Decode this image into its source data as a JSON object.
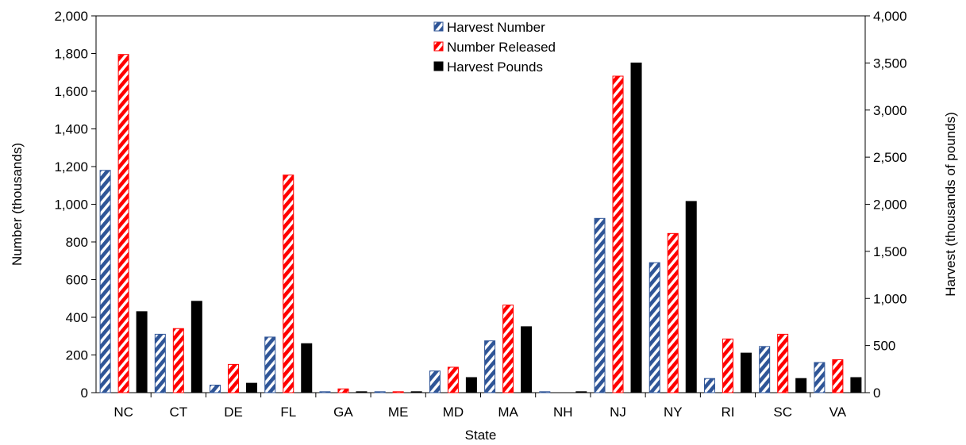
{
  "chart_data": {
    "type": "bar",
    "xlabel": "State",
    "ylabel": "Number  (thousands)",
    "y2label": "Harvest  (thousands of pounds)",
    "ylim": [
      0,
      2000
    ],
    "y2lim": [
      0,
      4000
    ],
    "yticks": [
      "0",
      "200",
      "400",
      "600",
      "800",
      "1,000",
      "1,200",
      "1,400",
      "1,600",
      "1,800",
      "2,000"
    ],
    "y2ticks": [
      "0",
      "500",
      "1,000",
      "1,500",
      "2,000",
      "2,500",
      "3,000",
      "3,500",
      "4,000"
    ],
    "grid": false,
    "legend_position": "top-center",
    "categories": [
      "NC",
      "CT",
      "DE",
      "FL",
      "GA",
      "ME",
      "MD",
      "MA",
      "NH",
      "NJ",
      "NY",
      "RI",
      "SC",
      "VA"
    ],
    "series": [
      {
        "name": "Harvest Number",
        "axis": "left",
        "color": "#2f5597",
        "pattern": "diagonal-hatch",
        "values": [
          1180,
          310,
          40,
          295,
          5,
          5,
          115,
          275,
          5,
          925,
          690,
          75,
          245,
          160
        ]
      },
      {
        "name": "Number Released",
        "axis": "left",
        "color": "#ff0000",
        "pattern": "diagonal-hatch",
        "values": [
          1795,
          340,
          150,
          1155,
          20,
          5,
          135,
          465,
          0,
          1680,
          845,
          285,
          310,
          175
        ]
      },
      {
        "name": "Harvest Pounds",
        "axis": "right",
        "color": "#000000",
        "pattern": "solid",
        "values": [
          860,
          970,
          100,
          520,
          10,
          10,
          160,
          700,
          10,
          3500,
          2030,
          420,
          150,
          160
        ]
      }
    ]
  }
}
